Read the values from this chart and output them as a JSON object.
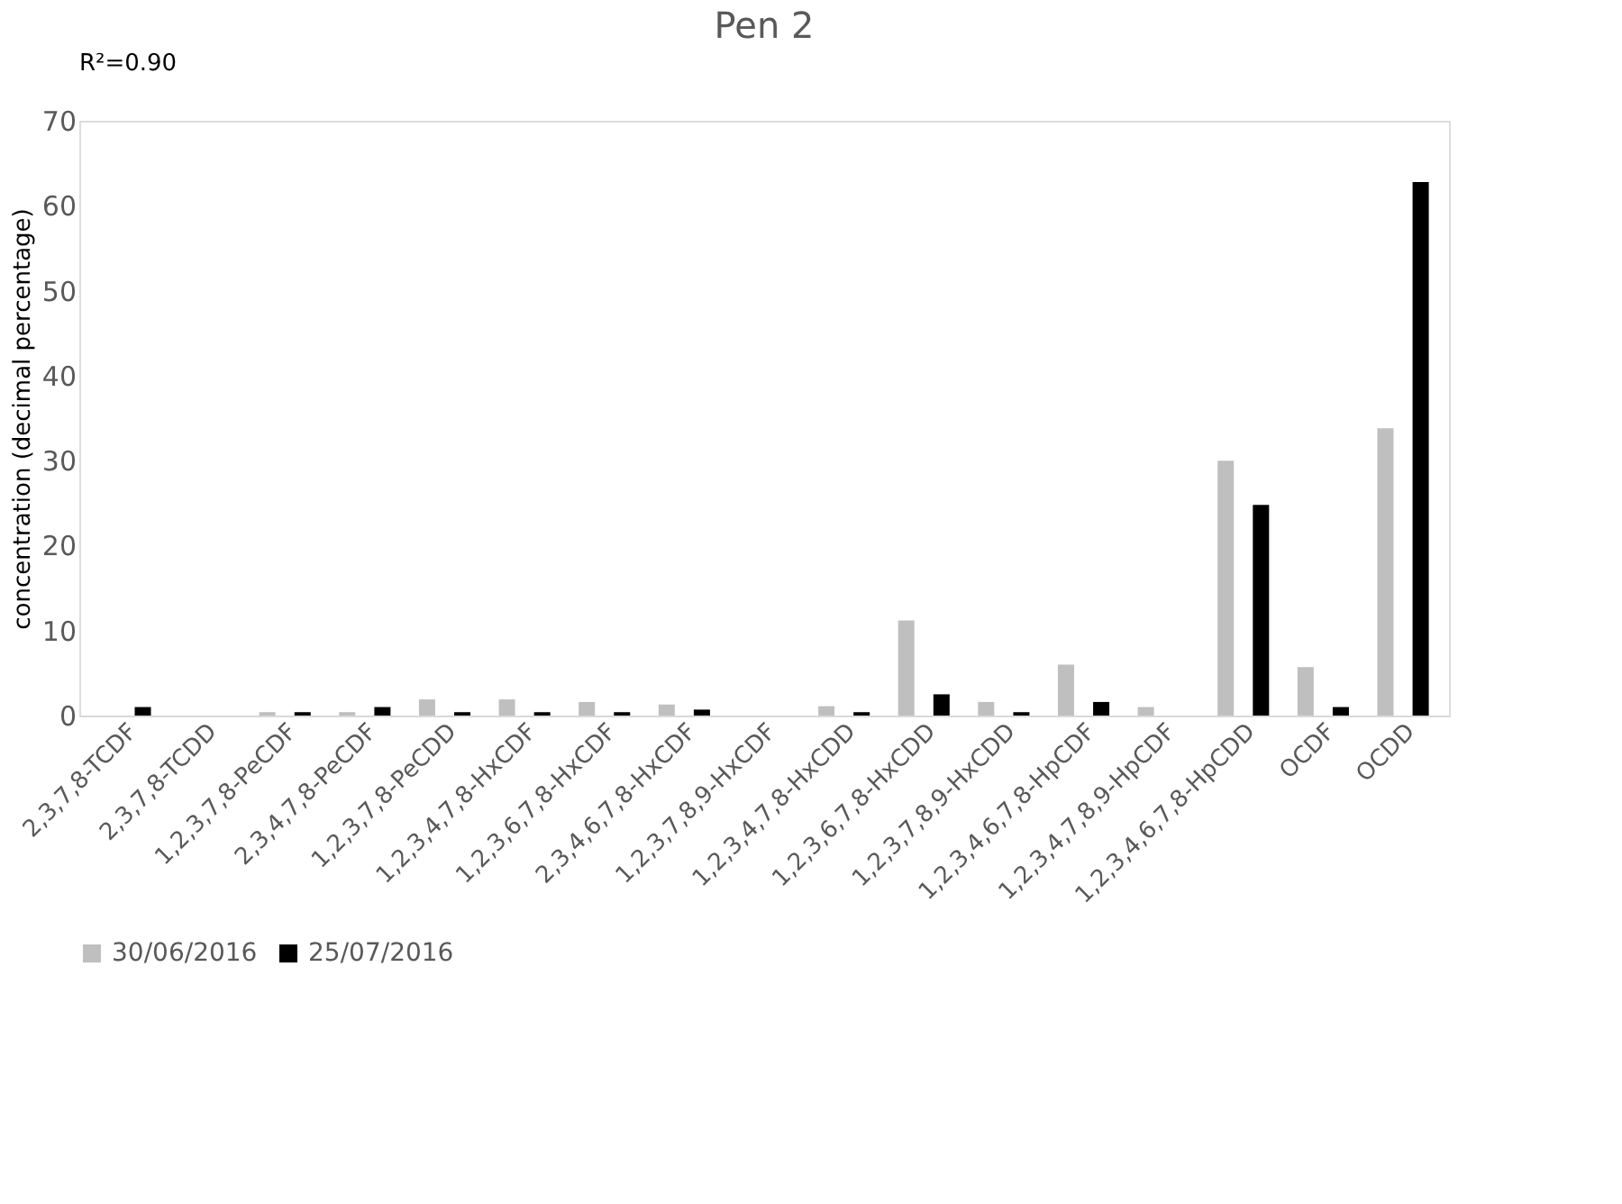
{
  "chart_data": {
    "type": "bar",
    "title": "Pen 2",
    "ylabel": "concentration (decimal percentage)",
    "annotations": [
      "R²=0.90"
    ],
    "categories": [
      "2,3,7,8-TCDF",
      "2,3,7,8-TCDD",
      "1,2,3,7,8-PeCDF",
      "2,3,4,7,8-PeCDF",
      "1,2,3,7,8-PeCDD",
      "1,2,3,4,7,8-HxCDF",
      "1,2,3,6,7,8-HxCDF",
      "2,3,4,6,7,8-HxCDF",
      "1,2,3,7,8,9-HxCDF",
      "1,2,3,4,7,8-HxCDD",
      "1,2,3,6,7,8-HxCDD",
      "1,2,3,7,8,9-HxCDD",
      "1,2,3,4,6,7,8-HpCDF",
      "1,2,3,4,7,8,9-HpCDF",
      "1,2,3,4,6,7,8-HpCDD",
      "OCDF",
      "OCDD"
    ],
    "series": [
      {
        "name": "30/06/2016",
        "color": "#bfbfbf",
        "values": [
          0,
          0,
          0.4,
          0.4,
          1.9,
          1.9,
          1.6,
          1.3,
          0,
          1.1,
          11.2,
          1.6,
          6.0,
          1.0,
          30.0,
          5.7,
          33.8
        ]
      },
      {
        "name": "25/07/2016",
        "color": "#000000",
        "values": [
          1.0,
          0,
          0.4,
          1.0,
          0.4,
          0.4,
          0.4,
          0.7,
          0,
          0.4,
          2.5,
          0.4,
          1.6,
          0,
          24.8,
          1.0,
          62.8
        ]
      }
    ],
    "ylim": [
      0,
      70
    ],
    "yticks": [
      0,
      10,
      20,
      30,
      40,
      50,
      60,
      70
    ],
    "grid": false,
    "legend": "bottom"
  }
}
